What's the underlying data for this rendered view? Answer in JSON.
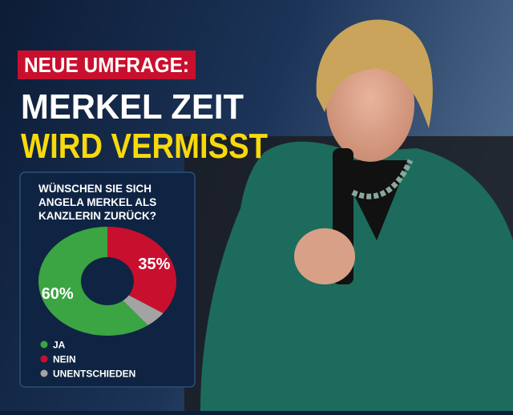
{
  "header": {
    "kicker": "NEUE UMFRAGE:",
    "headline": [
      "MERKEL ZEIT",
      "WIRD VERMISST"
    ]
  },
  "chart_data": {
    "type": "donut",
    "title": [
      "WÜNSCHEN SIE SICH",
      "ANGELA MERKEL ALS",
      "KANZLERIN ZURÜCK?"
    ],
    "categories": [
      "JA",
      "NEIN",
      "UNENTSCHIEDEN"
    ],
    "values": [
      60,
      35,
      5
    ],
    "value_labels": [
      "60%",
      "35%",
      null
    ],
    "colors": [
      "#3aa542",
      "#c8102e",
      "#a3a3a3"
    ],
    "legend": "bottom-left"
  }
}
